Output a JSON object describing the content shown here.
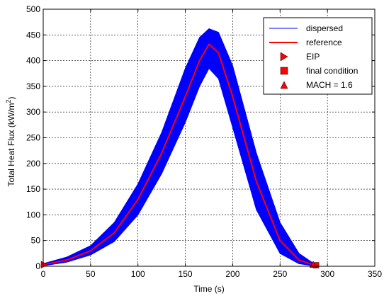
{
  "chart_data": {
    "type": "line",
    "title": "",
    "xlabel": "Time (s)",
    "ylabel_main": "Total Heat Flux (kW/m",
    "ylabel_sup": "2",
    "ylabel_close": ")",
    "xlim": [
      0,
      350
    ],
    "ylim": [
      0,
      500
    ],
    "xticks": [
      0,
      50,
      100,
      150,
      200,
      250,
      300,
      350
    ],
    "yticks": [
      0,
      50,
      100,
      150,
      200,
      250,
      300,
      350,
      400,
      450,
      500
    ],
    "grid": true,
    "legend_position": "top-right",
    "colors": {
      "dispersed": "#0000ff",
      "reference": "#ff0000",
      "marker": "#ff0000"
    },
    "series": [
      {
        "name": "reference",
        "x": [
          0,
          25,
          50,
          75,
          100,
          125,
          150,
          165,
          175,
          185,
          200,
          225,
          250,
          270,
          285,
          289
        ],
        "y": [
          3,
          12,
          30,
          65,
          130,
          220,
          330,
          400,
          432,
          415,
          330,
          165,
          50,
          12,
          3,
          2
        ]
      },
      {
        "name": "dispersed",
        "band": {
          "x": [
            0,
            25,
            50,
            75,
            100,
            125,
            150,
            165,
            175,
            185,
            200,
            225,
            250,
            270,
            285,
            289
          ],
          "lower": [
            1,
            8,
            22,
            48,
            100,
            180,
            280,
            350,
            385,
            365,
            270,
            110,
            25,
            5,
            1,
            0
          ],
          "upper": [
            5,
            18,
            40,
            85,
            160,
            260,
            385,
            445,
            462,
            455,
            390,
            220,
            85,
            25,
            6,
            4
          ]
        }
      }
    ],
    "markers": [
      {
        "name": "EIP",
        "shape": "triangle-right",
        "x": 0,
        "y": 3
      },
      {
        "name": "final condition",
        "shape": "square",
        "x": 288,
        "y": 2
      },
      {
        "name": "MACH = 1.6",
        "shape": "triangle-up",
        "x": 285,
        "y": 3
      }
    ],
    "legend": [
      "dispersed",
      "reference",
      "EIP",
      "final condition",
      "MACH = 1.6"
    ]
  }
}
